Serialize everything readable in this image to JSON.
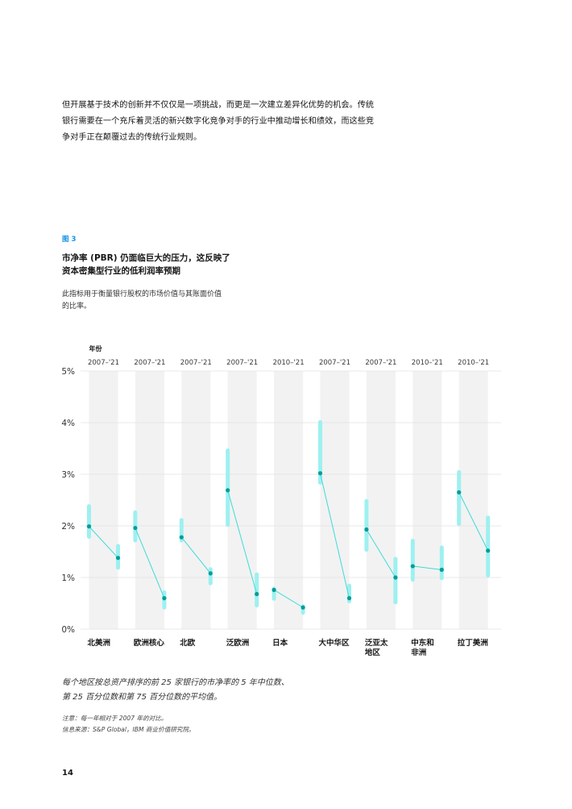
{
  "intro": {
    "lines": [
      "但开展基于技术的创新并不仅仅是一项挑战，而更是一次建立差异化优势的机会。传统",
      "银行需要在一个充斥着灵活的新兴数字化竞争对手的行业中推动增长和绩效，而这些竞",
      "争对手正在颠覆过去的传统行业规则。"
    ]
  },
  "figure": {
    "label": "图 3",
    "title_lines": [
      "市净率 (PBR) 仍面临巨大的压力，这反映了",
      "资本密集型行业的低利润率预期"
    ],
    "description_lines": [
      "此指标用于衡量银行股权的市场价值与其账面价值",
      "的比率。"
    ]
  },
  "chart_data": {
    "type": "range-dot",
    "year_header": "年份",
    "y_ticks": [
      "0%",
      "1%",
      "2%",
      "3%",
      "4%",
      "5%"
    ],
    "ylim": [
      0,
      5
    ],
    "unit": "%",
    "grid": true,
    "colors": {
      "range_bar": "#9ef0f0",
      "dot": "#009d9a",
      "line": "#3ddbd9",
      "column_bg": "#f2f2f2"
    },
    "regions": [
      {
        "name": [
          "北美洲"
        ],
        "period": "2007–'21",
        "start": {
          "median": 1.99,
          "low": 1.75,
          "high": 2.42
        },
        "end": {
          "median": 1.38,
          "low": 1.15,
          "high": 1.65
        }
      },
      {
        "name": [
          "欧洲核心"
        ],
        "period": "2007–'21",
        "start": {
          "median": 1.96,
          "low": 1.68,
          "high": 2.3
        },
        "end": {
          "median": 0.6,
          "low": 0.38,
          "high": 0.75
        }
      },
      {
        "name": [
          "北欧"
        ],
        "period": "2007–'21",
        "start": {
          "median": 1.78,
          "low": 1.68,
          "high": 2.15
        },
        "end": {
          "median": 1.08,
          "low": 0.85,
          "high": 1.2
        }
      },
      {
        "name": [
          "泛欧洲"
        ],
        "period": "2007–'21",
        "start": {
          "median": 2.69,
          "low": 1.98,
          "high": 3.5
        },
        "end": {
          "median": 0.68,
          "low": 0.42,
          "high": 1.1
        }
      },
      {
        "name": [
          "日本"
        ],
        "period": "2010–'21",
        "start": {
          "median": 0.76,
          "low": 0.55,
          "high": 0.82
        },
        "end": {
          "median": 0.42,
          "low": 0.28,
          "high": 0.48
        }
      },
      {
        "name": [
          "大中华区"
        ],
        "period": "2007–'21",
        "start": {
          "median": 3.02,
          "low": 2.8,
          "high": 4.05
        },
        "end": {
          "median": 0.6,
          "low": 0.5,
          "high": 0.88
        }
      },
      {
        "name": [
          "泛亚太",
          "地区"
        ],
        "period": "2007–'21",
        "start": {
          "median": 1.93,
          "low": 1.5,
          "high": 2.52
        },
        "end": {
          "median": 1.0,
          "low": 0.48,
          "high": 1.4
        }
      },
      {
        "name": [
          "中东和",
          "非洲"
        ],
        "period": "2010–'21",
        "start": {
          "median": 1.22,
          "low": 0.92,
          "high": 1.75
        },
        "end": {
          "median": 1.15,
          "low": 0.95,
          "high": 1.62
        }
      },
      {
        "name": [
          "拉丁美洲"
        ],
        "period": "2010–'21",
        "start": {
          "median": 2.65,
          "low": 2.0,
          "high": 3.08
        },
        "end": {
          "median": 1.52,
          "low": 1.0,
          "high": 2.2
        }
      }
    ]
  },
  "caption": {
    "lines": [
      "每个地区按总资产排序的前 25 家银行的市净率的 5 年中位数、",
      "第 25 百分位数和第 75 百分位数的平均值。"
    ]
  },
  "notes": {
    "note": "注意：每一年相对于 2007 年的对比。",
    "source": "信息来源：S&P Global，IBM 商业价值研究院。"
  },
  "page_number": "14"
}
